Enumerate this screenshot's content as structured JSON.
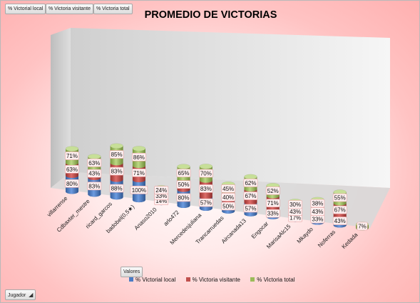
{
  "pivot_fields": {
    "victorial_local": "% Victorial local",
    "victoria_visitante": "% Victoria visitante",
    "victoria_total": "% Victoria total",
    "valores": "Valores",
    "jugador": "Jugador"
  },
  "colors": {
    "blue": "#4a7cc4",
    "red": "#c0504d",
    "green": "#9bbb59"
  },
  "chart_data": {
    "type": "bar",
    "title": "PROMEDIO DE VICTORIAS",
    "categories": [
      "villarrense",
      "Cdbaxter_mestre",
      "ricard_garcos",
      "badobel(0,5★)",
      "Anaso2010",
      "arlo472",
      "Mercedesjuliana",
      "Trancarruedas",
      "Aircanada13",
      "Engocar",
      "MarisaAlc15",
      "Mkaydo",
      "Noferras",
      "Kedada"
    ],
    "series": [
      {
        "name": "% Victorial local",
        "values": [
          80,
          83,
          88,
          100,
          14,
          80,
          57,
          50,
          57,
          33,
          17,
          33,
          43,
          null
        ]
      },
      {
        "name": "% Victoria visitante",
        "values": [
          63,
          43,
          83,
          71,
          33,
          50,
          83,
          40,
          67,
          71,
          43,
          43,
          67,
          null
        ]
      },
      {
        "name": "% Victoria total",
        "values": [
          71,
          63,
          85,
          86,
          24,
          65,
          70,
          45,
          62,
          52,
          30,
          38,
          55,
          7
        ]
      }
    ],
    "value_suffix": "%",
    "stacked": true,
    "style": "3d-cylinder",
    "legend": "bottom"
  }
}
